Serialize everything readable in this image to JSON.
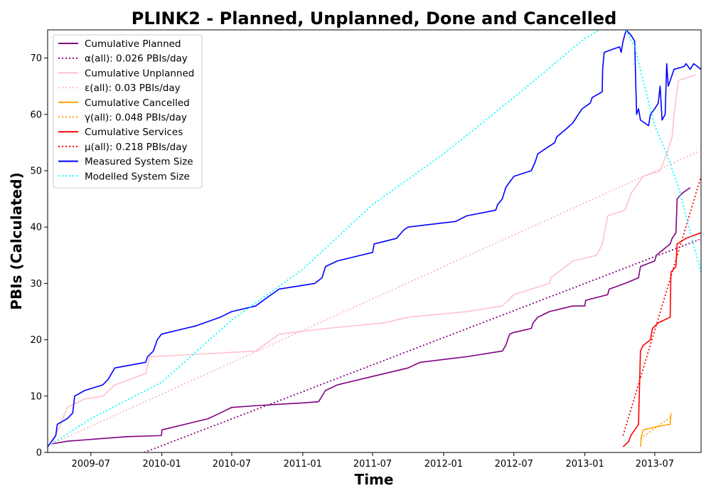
{
  "chart_data": {
    "type": "line",
    "title": "PLINK2 - Planned, Unplanned, Done  and Cancelled",
    "xlabel": "Time",
    "ylabel": "PBIs (Calculated)",
    "xlim": [
      "2009-03-11",
      "2013-10-29"
    ],
    "ylim": [
      0,
      75
    ],
    "x_ticks": [
      "2009-07",
      "2010-01",
      "2010-07",
      "2011-01",
      "2011-07",
      "2012-01",
      "2012-07",
      "2013-01",
      "2013-07"
    ],
    "y_ticks": [
      0,
      10,
      20,
      30,
      40,
      50,
      60,
      70
    ],
    "grid": false,
    "legend_position": "upper-left",
    "series": [
      {
        "name": "Cumulative Planned",
        "color": "#800080",
        "style": "solid",
        "points": [
          [
            "2009-03-21",
            1.5
          ],
          [
            "2009-05-01",
            2
          ],
          [
            "2009-10-01",
            2.8
          ],
          [
            "2009-12-31",
            3
          ],
          [
            "2010-01-01",
            4
          ],
          [
            "2010-05-01",
            6
          ],
          [
            "2010-06-01",
            7
          ],
          [
            "2010-07-01",
            8
          ],
          [
            "2010-09-01",
            8.3
          ],
          [
            "2011-01-01",
            8.8
          ],
          [
            "2011-02-11",
            9
          ],
          [
            "2011-03-01",
            11
          ],
          [
            "2011-04-01",
            12
          ],
          [
            "2011-07-01",
            13.5
          ],
          [
            "2011-10-01",
            15
          ],
          [
            "2011-11-01",
            16
          ],
          [
            "2012-03-01",
            17
          ],
          [
            "2012-06-01",
            18
          ],
          [
            "2012-06-10",
            19
          ],
          [
            "2012-06-20",
            21
          ],
          [
            "2012-07-01",
            21.3
          ],
          [
            "2012-08-15",
            22
          ],
          [
            "2012-08-20",
            23
          ],
          [
            "2012-09-01",
            24
          ],
          [
            "2012-10-01",
            25
          ],
          [
            "2012-12-01",
            26
          ],
          [
            "2013-01-01",
            26
          ],
          [
            "2013-01-03",
            27
          ],
          [
            "2013-03-01",
            28
          ],
          [
            "2013-03-05",
            29
          ],
          [
            "2013-04-15",
            30
          ],
          [
            "2013-05-20",
            31
          ],
          [
            "2013-05-25",
            33
          ],
          [
            "2013-07-01",
            34
          ],
          [
            "2013-07-05",
            35
          ],
          [
            "2013-08-10",
            37
          ],
          [
            "2013-08-15",
            38
          ],
          [
            "2013-08-25",
            39
          ],
          [
            "2013-08-28",
            45
          ],
          [
            "2013-09-10",
            46
          ],
          [
            "2013-10-01",
            47
          ]
        ]
      },
      {
        "name": "α(all): 0.026 PBIs/day",
        "color": "#800080",
        "style": "dotted",
        "points": [
          [
            "2009-11-16",
            0
          ],
          [
            "2013-10-25",
            37.8
          ]
        ]
      },
      {
        "name": "Cumulative Unplanned",
        "color": "#ffc0cb",
        "style": "solid",
        "points": [
          [
            "2009-03-21",
            1.3
          ],
          [
            "2009-04-01",
            3
          ],
          [
            "2009-05-01",
            8
          ],
          [
            "2009-06-15",
            9.5
          ],
          [
            "2009-08-01",
            10
          ],
          [
            "2009-09-01",
            12
          ],
          [
            "2009-11-20",
            14
          ],
          [
            "2009-12-01",
            17
          ],
          [
            "2010-02-01",
            17.2
          ],
          [
            "2010-09-01",
            18
          ],
          [
            "2010-11-01",
            21
          ],
          [
            "2011-03-01",
            22
          ],
          [
            "2011-08-01",
            23
          ],
          [
            "2011-10-01",
            24
          ],
          [
            "2012-03-01",
            25
          ],
          [
            "2012-06-01",
            26
          ],
          [
            "2012-07-01",
            28
          ],
          [
            "2012-10-01",
            30
          ],
          [
            "2012-10-05",
            31
          ],
          [
            "2012-12-01",
            34
          ],
          [
            "2013-02-01",
            35
          ],
          [
            "2013-02-15",
            37
          ],
          [
            "2013-03-01",
            42
          ],
          [
            "2013-04-15",
            43
          ],
          [
            "2013-05-01",
            46
          ],
          [
            "2013-06-01",
            49
          ],
          [
            "2013-07-15",
            50
          ],
          [
            "2013-08-01",
            53
          ],
          [
            "2013-08-15",
            56
          ],
          [
            "2013-08-20",
            60
          ],
          [
            "2013-08-31",
            66
          ],
          [
            "2013-10-15",
            67
          ]
        ]
      },
      {
        "name": "ε(all): 0.03 PBIs/day",
        "color": "#ffb6c1",
        "style": "dotted",
        "points": [
          [
            "2009-03-21",
            1.5
          ],
          [
            "2013-10-25",
            53.5
          ]
        ]
      },
      {
        "name": "Cumulative Cancelled",
        "color": "#ffa500",
        "style": "solid",
        "points": [
          [
            "2013-05-25",
            1
          ],
          [
            "2013-05-28",
            3
          ],
          [
            "2013-06-01",
            4
          ],
          [
            "2013-07-01",
            4.5
          ],
          [
            "2013-08-10",
            5
          ],
          [
            "2013-08-12",
            7
          ]
        ]
      },
      {
        "name": "γ(all): 0.048 PBIs/day",
        "color": "#ffa500",
        "style": "dotted",
        "points": [
          [
            "2013-05-25",
            2.5
          ],
          [
            "2013-08-12",
            6.3
          ]
        ]
      },
      {
        "name": "Cumulative Services",
        "color": "#ff0000",
        "style": "solid",
        "points": [
          [
            "2013-04-10",
            1
          ],
          [
            "2013-04-25",
            2
          ],
          [
            "2013-04-30",
            3
          ],
          [
            "2013-05-20",
            5
          ],
          [
            "2013-05-25",
            18
          ],
          [
            "2013-06-01",
            19
          ],
          [
            "2013-06-20",
            20
          ],
          [
            "2013-06-25",
            22
          ],
          [
            "2013-07-10",
            23
          ],
          [
            "2013-08-10",
            24
          ],
          [
            "2013-08-12",
            32
          ],
          [
            "2013-08-25",
            33
          ],
          [
            "2013-08-28",
            37
          ],
          [
            "2013-09-20",
            38
          ],
          [
            "2013-10-29",
            39
          ]
        ]
      },
      {
        "name": "μ(all): 0.218 PBIs/day",
        "color": "#ff0000",
        "style": "dotted",
        "points": [
          [
            "2013-04-10",
            3
          ],
          [
            "2013-10-29",
            49
          ]
        ]
      },
      {
        "name": "Measured System Size",
        "color": "#0000ff",
        "style": "solid",
        "points": [
          [
            "2009-03-11",
            1
          ],
          [
            "2009-04-01",
            3
          ],
          [
            "2009-04-05",
            5
          ],
          [
            "2009-05-01",
            6
          ],
          [
            "2009-05-15",
            7
          ],
          [
            "2009-05-20",
            10
          ],
          [
            "2009-06-15",
            11
          ],
          [
            "2009-08-01",
            12
          ],
          [
            "2009-08-15",
            13
          ],
          [
            "2009-09-01",
            15
          ],
          [
            "2009-11-20",
            16
          ],
          [
            "2009-11-25",
            17
          ],
          [
            "2009-12-10",
            18
          ],
          [
            "2009-12-20",
            20
          ],
          [
            "2009-12-31",
            21
          ],
          [
            "2010-04-01",
            22.5
          ],
          [
            "2010-06-01",
            24
          ],
          [
            "2010-07-01",
            25
          ],
          [
            "2010-09-01",
            26
          ],
          [
            "2010-10-01",
            27.5
          ],
          [
            "2010-11-01",
            29
          ],
          [
            "2011-02-01",
            30
          ],
          [
            "2011-02-20",
            31
          ],
          [
            "2011-03-01",
            33
          ],
          [
            "2011-04-01",
            34
          ],
          [
            "2011-07-01",
            35.5
          ],
          [
            "2011-07-05",
            37
          ],
          [
            "2011-09-01",
            38
          ],
          [
            "2011-09-20",
            39.5
          ],
          [
            "2011-10-01",
            40
          ],
          [
            "2012-02-01",
            41
          ],
          [
            "2012-03-01",
            42
          ],
          [
            "2012-05-15",
            43
          ],
          [
            "2012-05-20",
            44
          ],
          [
            "2012-06-01",
            45
          ],
          [
            "2012-06-10",
            47
          ],
          [
            "2012-06-20",
            48
          ],
          [
            "2012-07-01",
            49
          ],
          [
            "2012-08-15",
            50
          ],
          [
            "2012-08-25",
            51.5
          ],
          [
            "2012-09-01",
            53
          ],
          [
            "2012-10-15",
            55
          ],
          [
            "2012-10-20",
            56
          ],
          [
            "2012-11-15",
            57.5
          ],
          [
            "2012-12-01",
            58.5
          ],
          [
            "2012-12-15",
            60
          ],
          [
            "2012-12-25",
            61
          ],
          [
            "2013-01-15",
            62
          ],
          [
            "2013-01-20",
            63
          ],
          [
            "2013-02-15",
            64
          ],
          [
            "2013-02-16",
            68
          ],
          [
            "2013-02-20",
            71
          ],
          [
            "2013-04-01",
            72
          ],
          [
            "2013-04-05",
            71
          ],
          [
            "2013-04-10",
            73
          ],
          [
            "2013-04-18",
            75
          ],
          [
            "2013-05-01",
            74
          ],
          [
            "2013-05-10",
            73
          ],
          [
            "2013-05-15",
            60
          ],
          [
            "2013-05-20",
            61
          ],
          [
            "2013-05-25",
            59
          ],
          [
            "2013-06-15",
            58
          ],
          [
            "2013-06-20",
            60
          ],
          [
            "2013-07-01",
            61
          ],
          [
            "2013-07-10",
            62
          ],
          [
            "2013-07-15",
            65
          ],
          [
            "2013-07-20",
            59
          ],
          [
            "2013-07-28",
            60
          ],
          [
            "2013-08-01",
            69
          ],
          [
            "2013-08-05",
            65
          ],
          [
            "2013-08-20",
            68
          ],
          [
            "2013-09-15",
            68.5
          ],
          [
            "2013-09-20",
            69
          ],
          [
            "2013-10-01",
            68
          ],
          [
            "2013-10-10",
            69
          ],
          [
            "2013-10-29",
            68
          ]
        ]
      },
      {
        "name": "Modelled System Size",
        "color": "#00ffff",
        "style": "dotted",
        "points": [
          [
            "2009-03-21",
            1.5
          ],
          [
            "2009-07-01",
            6
          ],
          [
            "2010-01-01",
            12.5
          ],
          [
            "2010-07-01",
            23.5
          ],
          [
            "2011-01-01",
            32.5
          ],
          [
            "2011-07-01",
            44
          ],
          [
            "2012-01-01",
            53
          ],
          [
            "2012-07-01",
            63
          ],
          [
            "2013-01-01",
            73.5
          ],
          [
            "2013-04-01",
            77
          ],
          [
            "2013-05-10",
            72
          ],
          [
            "2013-06-01",
            66
          ],
          [
            "2013-07-01",
            58
          ],
          [
            "2013-08-01",
            53
          ],
          [
            "2013-09-01",
            47
          ],
          [
            "2013-10-01",
            39
          ],
          [
            "2013-10-29",
            32
          ]
        ]
      }
    ]
  }
}
